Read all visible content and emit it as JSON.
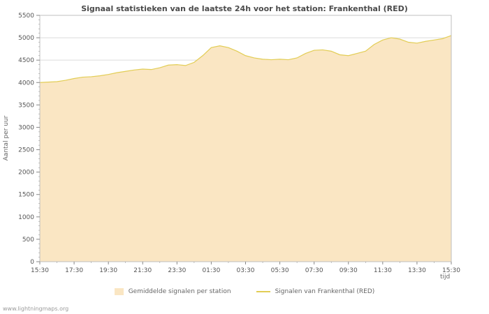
{
  "watermark": "www.lightningmaps.org",
  "chart_data": {
    "type": "area",
    "title": "Signaal statistieken van de laatste 24h voor het station: Frankenthal (RED)",
    "ylabel": "Aantal per uur",
    "xlabel": "tijd",
    "ylim": [
      0,
      5500
    ],
    "y_ticks": [
      0,
      500,
      1000,
      1500,
      2000,
      2500,
      3000,
      3500,
      4000,
      4500,
      5000,
      5500
    ],
    "x_tick_labels": [
      "15:30",
      "17:30",
      "19:30",
      "21:30",
      "23:30",
      "01:30",
      "03:30",
      "05:30",
      "07:30",
      "09:30",
      "11:30",
      "13:30",
      "15:30"
    ],
    "x_hours": [
      0,
      0.5,
      1,
      1.5,
      2,
      2.5,
      3,
      3.5,
      4,
      4.5,
      5,
      5.5,
      6,
      6.5,
      7,
      7.5,
      8,
      8.5,
      9,
      9.5,
      10,
      10.5,
      11,
      11.5,
      12,
      12.5,
      13,
      13.5,
      14,
      14.5,
      15,
      15.5,
      16,
      16.5,
      17,
      17.5,
      18,
      18.5,
      19,
      19.5,
      20,
      20.5,
      21,
      21.5,
      22,
      22.5,
      23,
      23.5,
      24
    ],
    "grid": "horizontal",
    "legend_position": "bottom",
    "series": [
      {
        "name": "Gemiddelde signalen per station",
        "style": "area",
        "color": "#fae6c3",
        "values": [
          4000,
          4010,
          4020,
          4050,
          4090,
          4120,
          4130,
          4150,
          4180,
          4220,
          4250,
          4280,
          4300,
          4290,
          4330,
          4390,
          4400,
          4380,
          4450,
          4600,
          4780,
          4820,
          4780,
          4700,
          4600,
          4550,
          4520,
          4510,
          4520,
          4510,
          4550,
          4650,
          4720,
          4730,
          4700,
          4620,
          4600,
          4650,
          4700,
          4850,
          4950,
          5000,
          4970,
          4900,
          4880,
          4920,
          4950,
          4980,
          5050
        ]
      },
      {
        "name": "Signalen van Frankenthal (RED)",
        "style": "line",
        "color": "#e2cd55",
        "values": [
          4000,
          4010,
          4020,
          4050,
          4090,
          4120,
          4130,
          4150,
          4180,
          4220,
          4250,
          4280,
          4300,
          4290,
          4330,
          4390,
          4400,
          4380,
          4450,
          4600,
          4780,
          4820,
          4780,
          4700,
          4600,
          4550,
          4520,
          4510,
          4520,
          4510,
          4550,
          4650,
          4720,
          4730,
          4700,
          4620,
          4600,
          4650,
          4700,
          4850,
          4950,
          5000,
          4970,
          4900,
          4880,
          4920,
          4950,
          4980,
          5050
        ]
      }
    ]
  }
}
